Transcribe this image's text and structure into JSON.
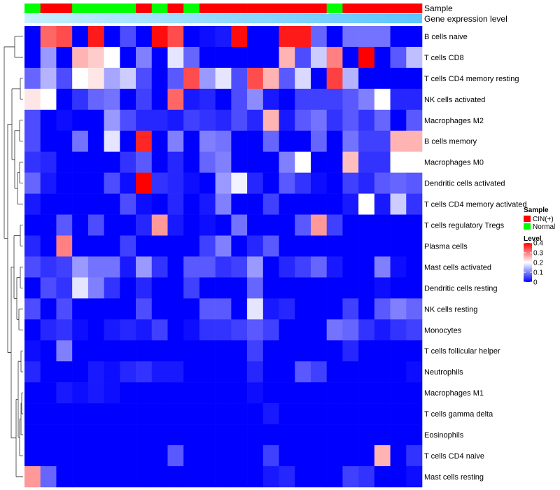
{
  "chart_data": {
    "type": "heatmap",
    "title": "",
    "rows": [
      "B cells naive",
      "T cells CD8",
      "T cells CD4 memory resting",
      "NK cells activated",
      "Macrophages M2",
      "B cells memory",
      "Macrophages M0",
      "Dendritic cells activated",
      "T cells CD4 memory activated",
      "T cells regulatory  Tregs",
      "Plasma cells",
      "Mast cells activated",
      "Dendritic cells resting",
      "NK cells resting",
      "Monocytes",
      "T cells follicular helper",
      "Neutrophils",
      "Macrophages M1",
      "T cells gamma delta",
      "Eosinophils",
      "T cells CD4 naive",
      "Mast cells resting"
    ],
    "n_columns": 25,
    "sample_groups": [
      "Normal",
      "CIN(+)",
      "CIN(+)",
      "Normal",
      "Normal",
      "Normal",
      "Normal",
      "CIN(+)",
      "Normal",
      "CIN(+)",
      "Normal",
      "CIN(+)",
      "CIN(+)",
      "CIN(+)",
      "CIN(+)",
      "CIN(+)",
      "CIN(+)",
      "CIN(+)",
      "CIN(+)",
      "Normal",
      "CIN(+)",
      "CIN(+)",
      "CIN(+)",
      "CIN(+)",
      "CIN(+)"
    ],
    "values": [
      [
        0.0,
        0.32,
        0.34,
        0.0,
        0.38,
        0.0,
        0.06,
        0.0,
        0.39,
        0.34,
        0.0,
        0.01,
        0.02,
        0.39,
        0.0,
        0.0,
        0.38,
        0.38,
        0.08,
        0.0,
        0.09,
        0.09,
        0.09,
        0.0,
        0.0
      ],
      [
        0.0,
        0.12,
        0.0,
        0.26,
        0.24,
        0.2,
        0.0,
        0.1,
        0.0,
        0.18,
        0.08,
        0.0,
        0.0,
        0.0,
        0.0,
        0.0,
        0.26,
        0.06,
        0.16,
        0.3,
        0.0,
        0.4,
        0.0,
        0.07,
        0.15
      ],
      [
        0.08,
        0.14,
        0.06,
        0.2,
        0.22,
        0.13,
        0.16,
        0.06,
        0.0,
        0.07,
        0.34,
        0.12,
        0.18,
        0.06,
        0.34,
        0.26,
        0.07,
        0.17,
        0.0,
        0.35,
        0.14,
        0.0,
        0.0,
        0.0,
        0.0
      ],
      [
        0.22,
        0.2,
        0.0,
        0.04,
        0.08,
        0.09,
        0.0,
        0.05,
        0.0,
        0.32,
        0.02,
        0.03,
        0.0,
        0.06,
        0.11,
        0.02,
        0.0,
        0.05,
        0.05,
        0.05,
        0.07,
        0.1,
        0.2,
        0.03,
        0.03
      ],
      [
        0.06,
        0.0,
        0.01,
        0.0,
        0.0,
        0.12,
        0.06,
        0.03,
        0.03,
        0.02,
        0.05,
        0.04,
        0.03,
        0.06,
        0.03,
        0.26,
        0.02,
        0.07,
        0.09,
        0.04,
        0.07,
        0.04,
        0.08,
        0.0,
        0.07
      ],
      [
        0.06,
        0.0,
        0.0,
        0.09,
        0.0,
        0.18,
        0.0,
        0.37,
        0.0,
        0.1,
        0.0,
        0.1,
        0.09,
        0.0,
        0.0,
        0.08,
        0.0,
        0.0,
        0.08,
        0.0,
        0.09,
        0.05,
        0.05,
        0.26,
        0.26
      ],
      [
        0.04,
        0.03,
        0.0,
        0.0,
        0.0,
        0.0,
        0.04,
        0.07,
        0.0,
        0.03,
        0.0,
        0.08,
        0.1,
        0.0,
        0.0,
        0.0,
        0.1,
        0.2,
        0.0,
        0.0,
        0.25,
        0.04,
        0.04,
        0.2,
        0.2
      ],
      [
        0.08,
        0.02,
        0.0,
        0.0,
        0.0,
        0.06,
        0.01,
        0.4,
        0.04,
        0.03,
        0.01,
        0.0,
        0.12,
        0.19,
        0.03,
        0.0,
        0.07,
        0.04,
        0.01,
        0.0,
        0.05,
        0.03,
        0.07,
        0.08,
        0.07
      ],
      [
        0.02,
        0.0,
        0.0,
        0.0,
        0.0,
        0.0,
        0.06,
        0.01,
        0.0,
        0.03,
        0.0,
        0.02,
        0.1,
        0.0,
        0.0,
        0.05,
        0.0,
        0.0,
        0.0,
        0.0,
        0.02,
        0.2,
        0.02,
        0.16,
        0.04
      ],
      [
        0.0,
        0.0,
        0.07,
        0.0,
        0.06,
        0.0,
        0.0,
        0.03,
        0.28,
        0.02,
        0.0,
        0.01,
        0.0,
        0.09,
        0.0,
        0.0,
        0.0,
        0.07,
        0.28,
        0.05,
        0.0,
        0.0,
        0.0,
        0.0,
        0.0
      ],
      [
        0.03,
        0.0,
        0.3,
        0.0,
        0.0,
        0.0,
        0.05,
        0.0,
        0.0,
        0.0,
        0.0,
        0.05,
        0.1,
        0.0,
        0.03,
        0.07,
        0.0,
        0.0,
        0.0,
        0.0,
        0.0,
        0.0,
        0.0,
        0.0,
        0.0
      ],
      [
        0.06,
        0.04,
        0.05,
        0.12,
        0.09,
        0.09,
        0.02,
        0.12,
        0.04,
        0.0,
        0.07,
        0.07,
        0.04,
        0.05,
        0.12,
        0.0,
        0.03,
        0.05,
        0.08,
        0.02,
        0.0,
        0.0,
        0.1,
        0.01,
        0.0
      ],
      [
        0.0,
        0.06,
        0.04,
        0.18,
        0.1,
        0.04,
        0.0,
        0.03,
        0.0,
        0.0,
        0.05,
        0.0,
        0.0,
        0.0,
        0.08,
        0.0,
        0.0,
        0.0,
        0.0,
        0.0,
        0.0,
        0.0,
        0.01,
        0.0,
        0.0
      ],
      [
        0.06,
        0.0,
        0.06,
        0.0,
        0.0,
        0.0,
        0.0,
        0.06,
        0.0,
        0.0,
        0.0,
        0.07,
        0.07,
        0.0,
        0.18,
        0.02,
        0.03,
        0.0,
        0.0,
        0.0,
        0.05,
        0.0,
        0.07,
        0.1,
        0.08
      ],
      [
        0.0,
        0.03,
        0.04,
        0.01,
        0.0,
        0.02,
        0.03,
        0.02,
        0.05,
        0.0,
        0.01,
        0.04,
        0.04,
        0.05,
        0.07,
        0.05,
        0.0,
        0.0,
        0.0,
        0.09,
        0.08,
        0.04,
        0.02,
        0.04,
        0.05
      ],
      [
        0.01,
        0.0,
        0.1,
        0.0,
        0.0,
        0.0,
        0.0,
        0.0,
        0.0,
        0.0,
        0.0,
        0.0,
        0.0,
        0.0,
        0.05,
        0.0,
        0.0,
        0.0,
        0.0,
        0.0,
        0.03,
        0.0,
        0.0,
        0.0,
        0.0
      ],
      [
        0.03,
        0.0,
        0.0,
        0.0,
        0.02,
        0.01,
        0.03,
        0.04,
        0.02,
        0.02,
        0.0,
        0.0,
        0.0,
        0.0,
        0.03,
        0.0,
        0.0,
        0.07,
        0.05,
        0.0,
        0.0,
        0.0,
        0.0,
        0.0,
        0.01
      ],
      [
        0.0,
        0.0,
        0.02,
        0.01,
        0.02,
        0.01,
        0.0,
        0.0,
        0.0,
        0.0,
        0.0,
        0.0,
        0.0,
        0.0,
        0.01,
        0.0,
        0.0,
        0.0,
        0.0,
        0.0,
        0.0,
        0.0,
        0.0,
        0.0,
        0.0
      ],
      [
        0.0,
        0.0,
        0.0,
        0.0,
        0.0,
        0.0,
        0.0,
        0.0,
        0.0,
        0.0,
        0.0,
        0.0,
        0.0,
        0.0,
        0.0,
        0.02,
        0.0,
        0.0,
        0.0,
        0.0,
        0.0,
        0.0,
        0.0,
        0.0,
        0.0
      ],
      [
        0.0,
        0.0,
        0.0,
        0.0,
        0.0,
        0.0,
        0.0,
        0.0,
        0.0,
        0.0,
        0.0,
        0.0,
        0.0,
        0.0,
        0.0,
        0.0,
        0.0,
        0.0,
        0.0,
        0.0,
        0.0,
        0.0,
        0.0,
        0.0,
        0.0
      ],
      [
        0.0,
        0.0,
        0.0,
        0.0,
        0.0,
        0.0,
        0.0,
        0.0,
        0.0,
        0.07,
        0.0,
        0.0,
        0.0,
        0.0,
        0.0,
        0.05,
        0.0,
        0.0,
        0.0,
        0.0,
        0.0,
        0.0,
        0.26,
        0.0,
        0.04
      ],
      [
        0.28,
        0.08,
        0.0,
        0.0,
        0.0,
        0.0,
        0.0,
        0.0,
        0.0,
        0.0,
        0.0,
        0.0,
        0.0,
        0.0,
        0.0,
        0.02,
        0.03,
        0.0,
        0.0,
        0.0,
        0.05,
        0.04,
        0.0,
        0.0,
        0.01
      ]
    ],
    "color_scale": {
      "min": 0,
      "max": 0.4,
      "colors": [
        "#0000ff",
        "#ffffff",
        "#ff0000"
      ]
    },
    "annotations": {
      "sample_label": "Sample",
      "gene_label": "Gene expression level"
    },
    "legends": {
      "sample": {
        "title": "Sample",
        "items": [
          {
            "label": "CIN(+)",
            "color": "#ff0000"
          },
          {
            "label": "Normal",
            "color": "#00ff00"
          }
        ]
      },
      "level": {
        "title": "Level",
        "ticks": [
          0.4,
          0.3,
          0.2,
          0.1,
          0
        ],
        "tick_labels": [
          "0.4",
          "0.3",
          "0.2",
          "0.1",
          "0"
        ]
      }
    },
    "group_colors": {
      "CIN(+)": "#ff0000",
      "Normal": "#00ff00"
    },
    "gene_bar_colors": [
      "#c6f0ff",
      "#5bc5ff"
    ]
  }
}
